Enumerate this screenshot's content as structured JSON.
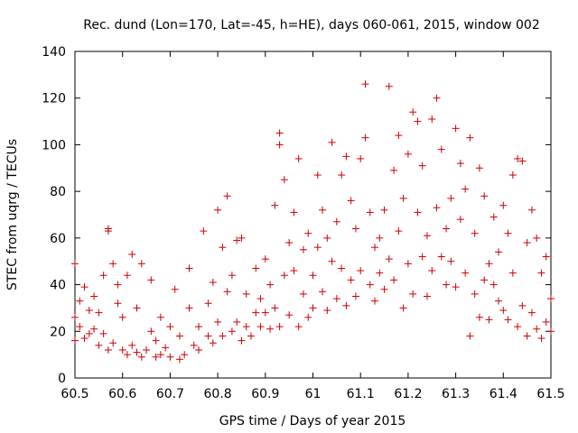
{
  "chart_data": {
    "type": "scatter",
    "title": "Rec. dund (Lon=170, Lat=-45, h=HE), days 060-061, 2015, window 002",
    "xlabel": "GPS time / Days of year 2015",
    "ylabel": "STEC from uqrg / TECUs",
    "xlim": [
      60.5,
      61.5
    ],
    "ylim": [
      0,
      140
    ],
    "xticks": [
      60.5,
      60.6,
      60.7,
      60.8,
      60.9,
      61,
      61.1,
      61.2,
      61.3,
      61.4,
      61.5
    ],
    "xtick_labels": [
      "60.5",
      "60.6",
      "60.7",
      "60.8",
      "60.9",
      "61",
      "61.1",
      "61.2",
      "61.3",
      "61.4",
      "61.5"
    ],
    "yticks": [
      0,
      20,
      40,
      60,
      80,
      100,
      120,
      140
    ],
    "ytick_labels": [
      "0",
      "20",
      "40",
      "60",
      "80",
      "100",
      "120",
      "140"
    ],
    "grid": false,
    "marker": "+",
    "series": [
      {
        "color": "#cc0000",
        "points": [
          [
            60.5,
            16
          ],
          [
            60.5,
            26
          ],
          [
            60.5,
            49
          ],
          [
            60.51,
            22
          ],
          [
            60.51,
            33
          ],
          [
            60.52,
            17
          ],
          [
            60.52,
            39
          ],
          [
            60.53,
            19
          ],
          [
            60.53,
            29
          ],
          [
            60.54,
            35
          ],
          [
            60.54,
            21
          ],
          [
            60.55,
            14
          ],
          [
            60.55,
            28
          ],
          [
            60.56,
            44
          ],
          [
            60.56,
            19
          ],
          [
            60.57,
            12
          ],
          [
            60.57,
            63
          ],
          [
            60.57,
            64
          ],
          [
            60.58,
            15
          ],
          [
            60.58,
            49
          ],
          [
            60.59,
            40
          ],
          [
            60.59,
            32
          ],
          [
            60.6,
            12
          ],
          [
            60.6,
            26
          ],
          [
            60.61,
            10
          ],
          [
            60.61,
            44
          ],
          [
            60.62,
            14
          ],
          [
            60.62,
            53
          ],
          [
            60.63,
            11
          ],
          [
            60.63,
            30
          ],
          [
            60.64,
            9
          ],
          [
            60.64,
            49
          ],
          [
            60.65,
            12
          ],
          [
            60.66,
            20
          ],
          [
            60.66,
            42
          ],
          [
            60.67,
            9
          ],
          [
            60.67,
            16
          ],
          [
            60.68,
            10
          ],
          [
            60.68,
            26
          ],
          [
            60.69,
            13
          ],
          [
            60.7,
            9
          ],
          [
            60.7,
            22
          ],
          [
            60.71,
            38
          ],
          [
            60.72,
            8
          ],
          [
            60.72,
            18
          ],
          [
            60.73,
            10
          ],
          [
            60.74,
            30
          ],
          [
            60.74,
            47
          ],
          [
            60.75,
            14
          ],
          [
            60.76,
            12
          ],
          [
            60.76,
            22
          ],
          [
            60.77,
            63
          ],
          [
            60.78,
            18
          ],
          [
            60.78,
            32
          ],
          [
            60.79,
            15
          ],
          [
            60.79,
            41
          ],
          [
            60.8,
            72
          ],
          [
            60.8,
            24
          ],
          [
            60.81,
            18
          ],
          [
            60.81,
            56
          ],
          [
            60.82,
            37
          ],
          [
            60.82,
            78
          ],
          [
            60.83,
            20
          ],
          [
            60.83,
            44
          ],
          [
            60.84,
            24
          ],
          [
            60.84,
            59
          ],
          [
            60.85,
            16
          ],
          [
            60.85,
            60
          ],
          [
            60.86,
            22
          ],
          [
            60.86,
            36
          ],
          [
            60.87,
            18
          ],
          [
            60.88,
            28
          ],
          [
            60.88,
            47
          ],
          [
            60.89,
            22
          ],
          [
            60.89,
            34
          ],
          [
            60.9,
            28
          ],
          [
            60.9,
            51
          ],
          [
            60.91,
            21
          ],
          [
            60.91,
            40
          ],
          [
            60.92,
            74
          ],
          [
            60.92,
            30
          ],
          [
            60.93,
            22
          ],
          [
            60.93,
            100
          ],
          [
            60.93,
            105
          ],
          [
            60.94,
            44
          ],
          [
            60.94,
            85
          ],
          [
            60.95,
            27
          ],
          [
            60.95,
            58
          ],
          [
            60.96,
            71
          ],
          [
            60.96,
            46
          ],
          [
            60.97,
            22
          ],
          [
            60.97,
            94
          ],
          [
            60.98,
            36
          ],
          [
            60.98,
            55
          ],
          [
            60.99,
            26
          ],
          [
            60.99,
            62
          ],
          [
            61.0,
            30
          ],
          [
            61.0,
            44
          ],
          [
            61.01,
            56
          ],
          [
            61.01,
            87
          ],
          [
            61.02,
            37
          ],
          [
            61.02,
            72
          ],
          [
            61.03,
            29
          ],
          [
            61.03,
            60
          ],
          [
            61.04,
            101
          ],
          [
            61.04,
            50
          ],
          [
            61.05,
            34
          ],
          [
            61.05,
            67
          ],
          [
            61.06,
            47
          ],
          [
            61.06,
            87
          ],
          [
            61.07,
            31
          ],
          [
            61.07,
            95
          ],
          [
            61.08,
            42
          ],
          [
            61.08,
            76
          ],
          [
            61.09,
            35
          ],
          [
            61.09,
            64
          ],
          [
            61.1,
            94
          ],
          [
            61.1,
            46
          ],
          [
            61.11,
            126
          ],
          [
            61.11,
            103
          ],
          [
            61.12,
            40
          ],
          [
            61.12,
            71
          ],
          [
            61.13,
            56
          ],
          [
            61.13,
            33
          ],
          [
            61.14,
            60
          ],
          [
            61.14,
            45
          ],
          [
            61.15,
            72
          ],
          [
            61.15,
            38
          ],
          [
            61.16,
            51
          ],
          [
            61.16,
            125
          ],
          [
            61.17,
            89
          ],
          [
            61.17,
            42
          ],
          [
            61.18,
            104
          ],
          [
            61.18,
            63
          ],
          [
            61.19,
            30
          ],
          [
            61.19,
            77
          ],
          [
            61.2,
            96
          ],
          [
            61.2,
            49
          ],
          [
            61.21,
            114
          ],
          [
            61.21,
            36
          ],
          [
            61.22,
            110
          ],
          [
            61.22,
            71
          ],
          [
            61.23,
            91
          ],
          [
            61.23,
            52
          ],
          [
            61.24,
            35
          ],
          [
            61.24,
            61
          ],
          [
            61.25,
            111
          ],
          [
            61.25,
            46
          ],
          [
            61.26,
            120
          ],
          [
            61.26,
            73
          ],
          [
            61.27,
            52
          ],
          [
            61.27,
            98
          ],
          [
            61.28,
            40
          ],
          [
            61.28,
            64
          ],
          [
            61.29,
            77
          ],
          [
            61.29,
            50
          ],
          [
            61.3,
            107
          ],
          [
            61.3,
            39
          ],
          [
            61.31,
            92
          ],
          [
            61.31,
            68
          ],
          [
            61.32,
            81
          ],
          [
            61.32,
            45
          ],
          [
            61.33,
            103
          ],
          [
            61.33,
            18
          ],
          [
            61.34,
            62
          ],
          [
            61.34,
            36
          ],
          [
            61.35,
            90
          ],
          [
            61.35,
            26
          ],
          [
            61.36,
            78
          ],
          [
            61.36,
            42
          ],
          [
            61.37,
            49
          ],
          [
            61.37,
            25
          ],
          [
            61.38,
            40
          ],
          [
            61.38,
            69
          ],
          [
            61.39,
            33
          ],
          [
            61.39,
            54
          ],
          [
            61.4,
            29
          ],
          [
            61.4,
            74
          ],
          [
            61.41,
            62
          ],
          [
            61.41,
            25
          ],
          [
            61.42,
            87
          ],
          [
            61.42,
            45
          ],
          [
            61.43,
            94
          ],
          [
            61.43,
            22
          ],
          [
            61.44,
            93
          ],
          [
            61.44,
            31
          ],
          [
            61.45,
            58
          ],
          [
            61.45,
            18
          ],
          [
            61.46,
            72
          ],
          [
            61.46,
            28
          ],
          [
            61.47,
            60
          ],
          [
            61.47,
            21
          ],
          [
            61.48,
            45
          ],
          [
            61.48,
            17
          ],
          [
            61.49,
            52
          ],
          [
            61.49,
            24
          ],
          [
            61.5,
            20
          ],
          [
            61.5,
            34
          ]
        ]
      }
    ]
  }
}
